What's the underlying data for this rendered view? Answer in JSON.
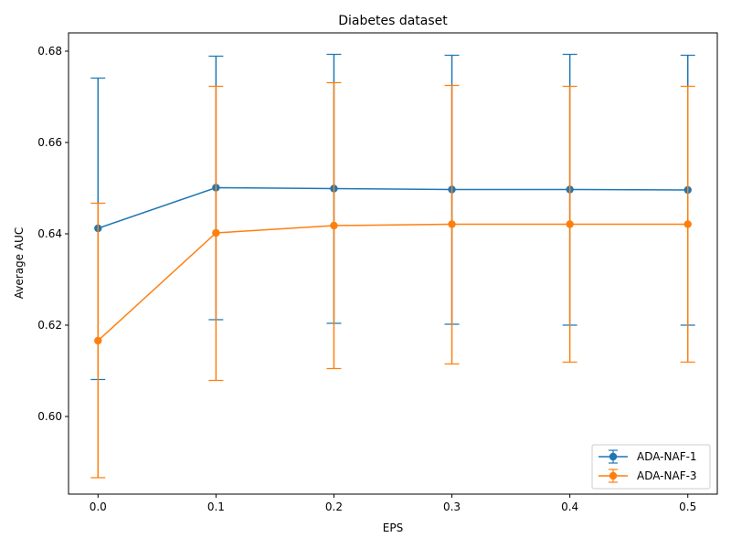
{
  "chart_data": {
    "type": "line",
    "title": "Diabetes dataset",
    "xlabel": "EPS",
    "ylabel": "Average AUC",
    "x": [
      0.0,
      0.1,
      0.2,
      0.3,
      0.4,
      0.5
    ],
    "x_tick_labels": [
      "0.0",
      "0.1",
      "0.2",
      "0.3",
      "0.4",
      "0.5"
    ],
    "y_ticks": [
      0.6,
      0.62,
      0.64,
      0.66,
      0.68
    ],
    "y_tick_labels": [
      "0.60",
      "0.62",
      "0.64",
      "0.66",
      "0.68"
    ],
    "xlim": [
      -0.025,
      0.525
    ],
    "ylim": [
      0.583,
      0.684
    ],
    "grid": false,
    "legend_position": "lower-right",
    "series": [
      {
        "name": "ADA-NAF-1",
        "color": "#1f77b4",
        "values": [
          0.6412,
          0.6501,
          0.6499,
          0.6497,
          0.6497,
          0.6496
        ],
        "error_low": [
          0.6081,
          0.6212,
          0.6204,
          0.6202,
          0.62,
          0.62
        ],
        "error_high": [
          0.6741,
          0.6789,
          0.6793,
          0.6791,
          0.6793,
          0.6791
        ]
      },
      {
        "name": "ADA-NAF-3",
        "color": "#ff7f0e",
        "values": [
          0.6166,
          0.6402,
          0.6418,
          0.6421,
          0.6421,
          0.6421
        ],
        "error_low": [
          0.5866,
          0.6079,
          0.6105,
          0.6115,
          0.6119,
          0.6119
        ],
        "error_high": [
          0.6467,
          0.6723,
          0.6731,
          0.6725,
          0.6723,
          0.6723
        ]
      }
    ]
  }
}
